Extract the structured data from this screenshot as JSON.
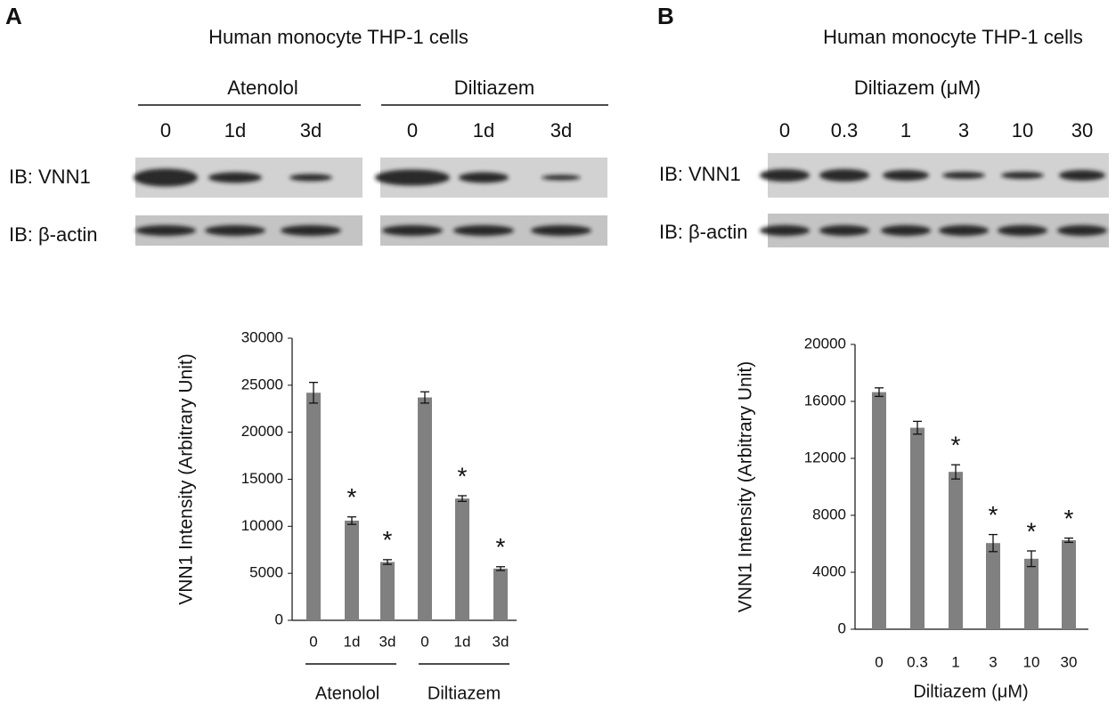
{
  "panels": [
    {
      "label": "A",
      "title": "Human monocyte THP-1 cells",
      "blots": [
        "IB: VNN1",
        "IB: β-actin"
      ]
    },
    {
      "label": "B",
      "title": "Human monocyte THP-1 cells",
      "treatment": "Diltiazem (μM)",
      "blots": [
        "IB: VNN1",
        "IB: β-actin"
      ]
    }
  ],
  "chart_data": [
    {
      "type": "bar",
      "ylabel": "VNN1 Intensity (Arbitrary Unit)",
      "categories": [
        "0",
        "1d",
        "3d",
        "0",
        "1d",
        "3d"
      ],
      "groups": [
        "Atenolol",
        "Diltiazem"
      ],
      "values": [
        24200,
        10600,
        6200,
        23700,
        12950,
        5500
      ],
      "errors": [
        1100,
        400,
        250,
        600,
        300,
        200
      ],
      "annotations": [
        {
          "category": 1,
          "text": "*"
        },
        {
          "category": 2,
          "text": "*"
        },
        {
          "category": 4,
          "text": "*"
        },
        {
          "category": 5,
          "text": "*"
        }
      ],
      "color": "#808080",
      "ylim": [
        0,
        30000
      ],
      "yticks": [
        0,
        5000,
        10000,
        15000,
        20000,
        25000,
        30000
      ]
    },
    {
      "type": "bar",
      "ylabel": "VNN1 Intensity (Arbitrary Unit)",
      "xlabel": "Diltiazem (μM)",
      "categories": [
        "0",
        "0.3",
        "1",
        "3",
        "10",
        "30"
      ],
      "values": [
        16650,
        14150,
        11050,
        6050,
        4950,
        6250
      ],
      "errors": [
        300,
        450,
        500,
        600,
        550,
        150
      ],
      "annotations": [
        {
          "category": 2,
          "text": "*"
        },
        {
          "category": 3,
          "text": "*"
        },
        {
          "category": 4,
          "text": "*"
        },
        {
          "category": 5,
          "text": "*"
        }
      ],
      "color": "#808080",
      "ylim": [
        0,
        20000
      ],
      "yticks": [
        0,
        4000,
        8000,
        12000,
        16000,
        20000
      ]
    }
  ]
}
